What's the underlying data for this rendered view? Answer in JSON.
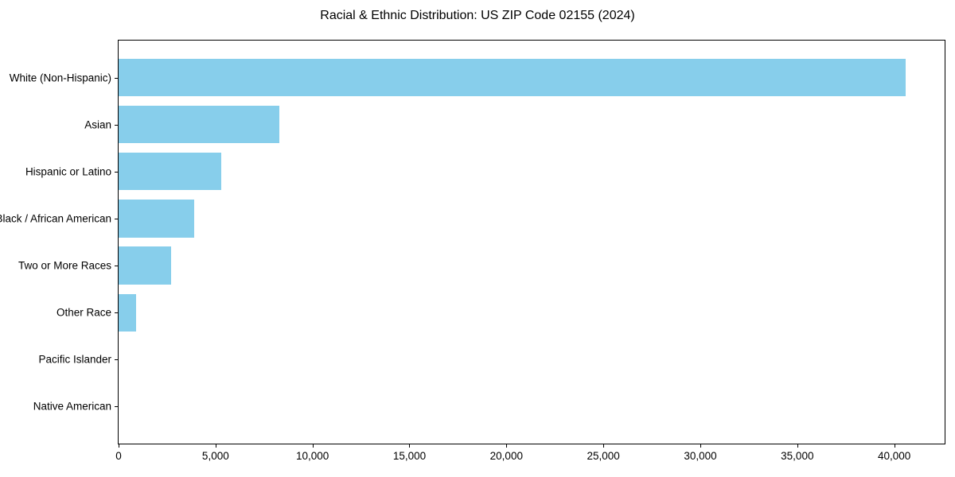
{
  "chart_data": {
    "type": "bar",
    "orientation": "horizontal",
    "title": "Racial & Ethnic Distribution: US ZIP Code 02155 (2024)",
    "categories": [
      "White (Non-Hispanic)",
      "Asian",
      "Hispanic or Latino",
      "Black / African American",
      "Two or More Races",
      "Other Race",
      "Pacific Islander",
      "Native American"
    ],
    "values": [
      40600,
      8300,
      5300,
      3900,
      2700,
      900,
      0,
      0
    ],
    "xlabel": "",
    "ylabel": "",
    "xlim": [
      0,
      42600
    ],
    "xticks": [
      0,
      5000,
      10000,
      15000,
      20000,
      25000,
      30000,
      35000,
      40000
    ],
    "xtick_labels": [
      "0",
      "5,000",
      "10,000",
      "15,000",
      "20,000",
      "25,000",
      "30,000",
      "35,000",
      "40,000"
    ],
    "grid": false,
    "legend": null,
    "bar_color": "#87CEEB",
    "spine_color": "#000000",
    "background_color": "#FFFFFF"
  }
}
